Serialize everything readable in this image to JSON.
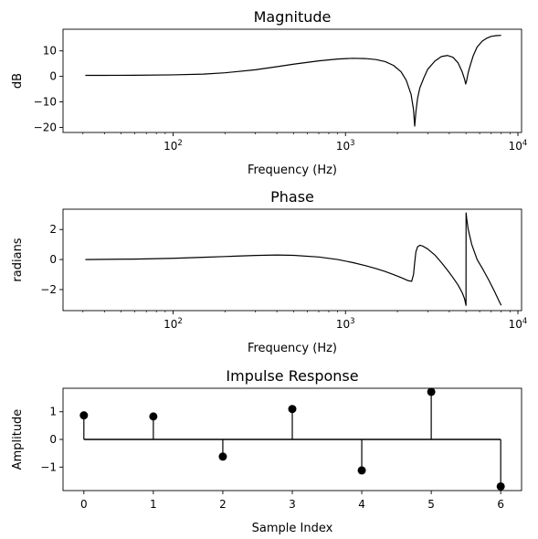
{
  "chart_data": [
    {
      "type": "line",
      "title": "Magnitude",
      "xlabel": "Frequency (Hz)",
      "ylabel": "dB",
      "xscale": "log",
      "xlim": [
        23,
        10500
      ],
      "ylim": [
        -22,
        18.5
      ],
      "xticks": [
        100,
        1000,
        10000
      ],
      "xtick_labels": [
        "10",
        "10",
        "10"
      ],
      "xtick_exponents": [
        "2",
        "3",
        "4"
      ],
      "yticks": [
        -20,
        -10,
        0,
        10
      ],
      "ytick_labels": [
        "−20",
        "−10",
        "0",
        "10"
      ],
      "grid": false,
      "series": [
        {
          "x": [
            31,
            40,
            60,
            100,
            150,
            200,
            300,
            400,
            500,
            700,
            900,
            1100,
            1300,
            1500,
            1700,
            1900,
            2100,
            2250,
            2400,
            2480,
            2520,
            2560,
            2620,
            2700,
            2850,
            3000,
            3300,
            3600,
            3900,
            4200,
            4500,
            4750,
            4900,
            4980,
            5050,
            5150,
            5300,
            5500,
            5800,
            6200,
            6600,
            7000,
            7500,
            8000
          ],
          "y": [
            0.4,
            0.4,
            0.45,
            0.6,
            0.9,
            1.4,
            2.6,
            3.8,
            4.8,
            6.1,
            6.8,
            7.1,
            7.0,
            6.6,
            5.8,
            4.3,
            1.8,
            -1.5,
            -7.0,
            -13.0,
            -19.5,
            -14.0,
            -8.5,
            -4.5,
            -0.5,
            2.8,
            6.0,
            7.8,
            8.2,
            7.5,
            5.3,
            1.8,
            -1.0,
            -3.0,
            -1.5,
            1.5,
            4.5,
            8.0,
            11.5,
            13.8,
            15.0,
            15.7,
            16.0,
            16.1
          ]
        }
      ]
    },
    {
      "type": "line",
      "title": "Phase",
      "xlabel": "Frequency (Hz)",
      "ylabel": "radians",
      "xscale": "log",
      "xlim": [
        23,
        10500
      ],
      "ylim": [
        -3.4,
        3.35
      ],
      "xticks": [
        100,
        1000,
        10000
      ],
      "xtick_labels": [
        "10",
        "10",
        "10"
      ],
      "xtick_exponents": [
        "2",
        "3",
        "4"
      ],
      "yticks": [
        -2,
        0,
        2
      ],
      "ytick_labels": [
        "−2",
        "0",
        "2"
      ],
      "grid": false,
      "series": [
        {
          "x": [
            31,
            60,
            100,
            150,
            200,
            300,
            400,
            500,
            700,
            900,
            1100,
            1300,
            1500,
            1700,
            1900,
            2100,
            2300,
            2420,
            2480,
            2520,
            2560,
            2620,
            2700,
            2800,
            3000,
            3300,
            3600,
            3900,
            4200,
            4500,
            4750,
            4900,
            5000,
            5005,
            5050,
            5150,
            5400,
            5800,
            6300,
            6800,
            7300,
            7800,
            8000
          ],
          "y": [
            0.0,
            0.03,
            0.08,
            0.15,
            0.2,
            0.27,
            0.3,
            0.28,
            0.17,
            0.0,
            -0.2,
            -0.4,
            -0.6,
            -0.8,
            -1.0,
            -1.2,
            -1.4,
            -1.45,
            -1.0,
            -0.2,
            0.5,
            0.85,
            0.95,
            0.9,
            0.7,
            0.3,
            -0.2,
            -0.7,
            -1.2,
            -1.7,
            -2.2,
            -2.6,
            -3.05,
            3.1,
            2.7,
            2.0,
            1.0,
            0.0,
            -0.7,
            -1.4,
            -2.1,
            -2.8,
            -3.05
          ]
        }
      ]
    },
    {
      "type": "stem",
      "title": "Impulse Response",
      "xlabel": "Sample Index",
      "ylabel": "Amplitude",
      "xlim": [
        -0.3,
        6.3
      ],
      "ylim": [
        -1.85,
        1.85
      ],
      "xticks": [
        0,
        1,
        2,
        3,
        4,
        5,
        6
      ],
      "xtick_labels": [
        "0",
        "1",
        "2",
        "3",
        "4",
        "5",
        "6"
      ],
      "yticks": [
        -1,
        0,
        1
      ],
      "ytick_labels": [
        "−1",
        "0",
        "1"
      ],
      "grid": false,
      "x": [
        0,
        1,
        2,
        3,
        4,
        5,
        6
      ],
      "values": [
        0.87,
        0.83,
        -0.62,
        1.1,
        -1.12,
        1.72,
        -1.7
      ]
    }
  ]
}
